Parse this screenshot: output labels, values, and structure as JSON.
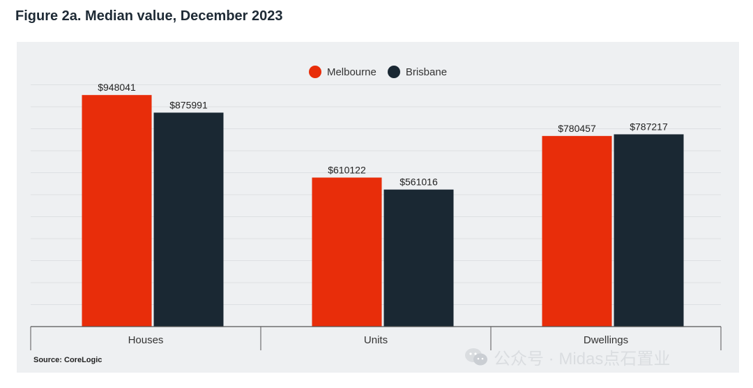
{
  "figure": {
    "title": "Figure 2a. Median value, December 2023",
    "source": "Source: CoreLogic"
  },
  "watermark": {
    "text": "公众号 · Midas点石置业",
    "icon": "wechat-icon"
  },
  "legend": [
    {
      "label": "Melbourne",
      "color": "#e82d0a"
    },
    {
      "label": "Brisbane",
      "color": "#1a2833"
    }
  ],
  "chart_data": {
    "type": "bar",
    "title": "Figure 2a. Median value, December 2023",
    "categories": [
      "Houses",
      "Units",
      "Dwellings"
    ],
    "series": [
      {
        "name": "Melbourne",
        "color": "#e82d0a",
        "values": [
          948041,
          610122,
          780457
        ],
        "labels": [
          "$948041",
          "$610122",
          "$780457"
        ]
      },
      {
        "name": "Brisbane",
        "color": "#1a2833",
        "values": [
          875991,
          561016,
          787217
        ],
        "labels": [
          "$875991",
          "$561016",
          "$787217"
        ]
      }
    ],
    "ylim": [
      0,
      1000000
    ],
    "grid": true,
    "legend_position": "top-center",
    "xlabel": "",
    "ylabel": ""
  }
}
